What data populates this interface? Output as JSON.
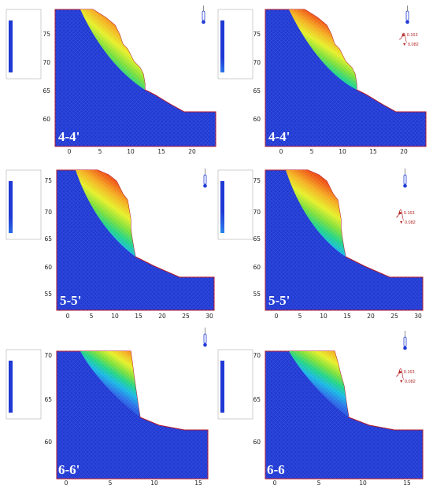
{
  "panels": [
    {
      "section": "4-4'",
      "xticks": [
        "0",
        "5",
        "10",
        "15",
        "20"
      ],
      "yticks": [
        "75",
        "70",
        "65",
        "60"
      ],
      "markers": []
    },
    {
      "section": "4-4'",
      "xticks": [
        "0",
        "5",
        "10",
        "15",
        "20"
      ],
      "yticks": [
        "75",
        "70",
        "65",
        "60"
      ],
      "markers": [
        "0.163",
        "0.082"
      ]
    },
    {
      "section": "5-5'",
      "xticks": [
        "0",
        "5",
        "10",
        "15",
        "20",
        "25",
        "30"
      ],
      "yticks": [
        "75",
        "70",
        "65",
        "60",
        "55"
      ],
      "markers": []
    },
    {
      "section": "5-5'",
      "xticks": [
        "0",
        "5",
        "10",
        "15",
        "20",
        "25",
        "30"
      ],
      "yticks": [
        "75",
        "70",
        "65",
        "60",
        "55"
      ],
      "markers": [
        "0.163",
        "0.082"
      ]
    },
    {
      "section": "6-6'",
      "xticks": [
        "0",
        "5",
        "10",
        "15"
      ],
      "yticks": [
        "70",
        "65",
        "60"
      ],
      "markers": []
    },
    {
      "section": "6-6",
      "xticks": [
        "0",
        "5",
        "10",
        "15"
      ],
      "yticks": [
        "70",
        "65",
        "60"
      ],
      "markers": [
        "0.163",
        "0.082"
      ]
    }
  ],
  "colors": {
    "background": "#1f39d4",
    "outline": "#b0142a",
    "ramp": [
      "#d41616",
      "#f05a14",
      "#f5b020",
      "#e6f028",
      "#7ae03a",
      "#20d48a",
      "#18b8e6",
      "#2a6ee8",
      "#1f39d4"
    ]
  },
  "icons": [
    "thermometer-icon"
  ]
}
